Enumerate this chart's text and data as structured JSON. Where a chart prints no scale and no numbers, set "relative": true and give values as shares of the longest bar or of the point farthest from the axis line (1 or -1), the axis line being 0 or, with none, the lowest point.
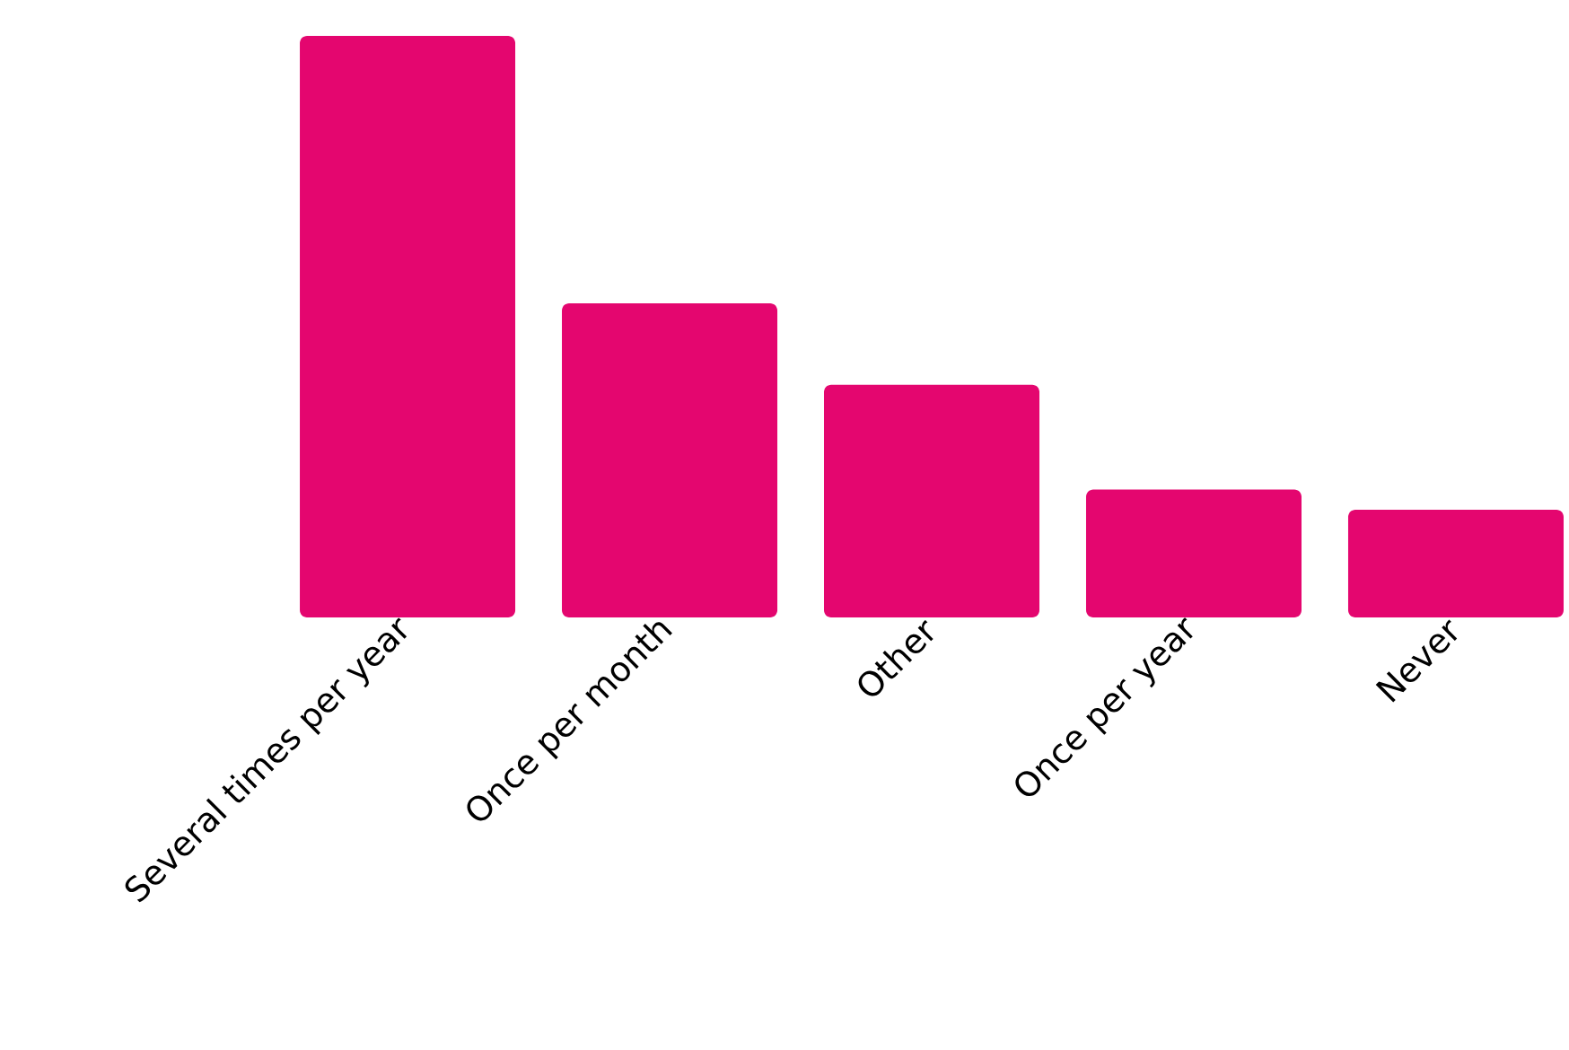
{
  "chart_data": {
    "type": "bar",
    "relative": true,
    "color": "#e4066f",
    "categories": [
      "Several times per year",
      "Once per month",
      "Other",
      "Once per year",
      "Never"
    ],
    "values": [
      1,
      0.54,
      0.4,
      0.22,
      0.185
    ]
  }
}
